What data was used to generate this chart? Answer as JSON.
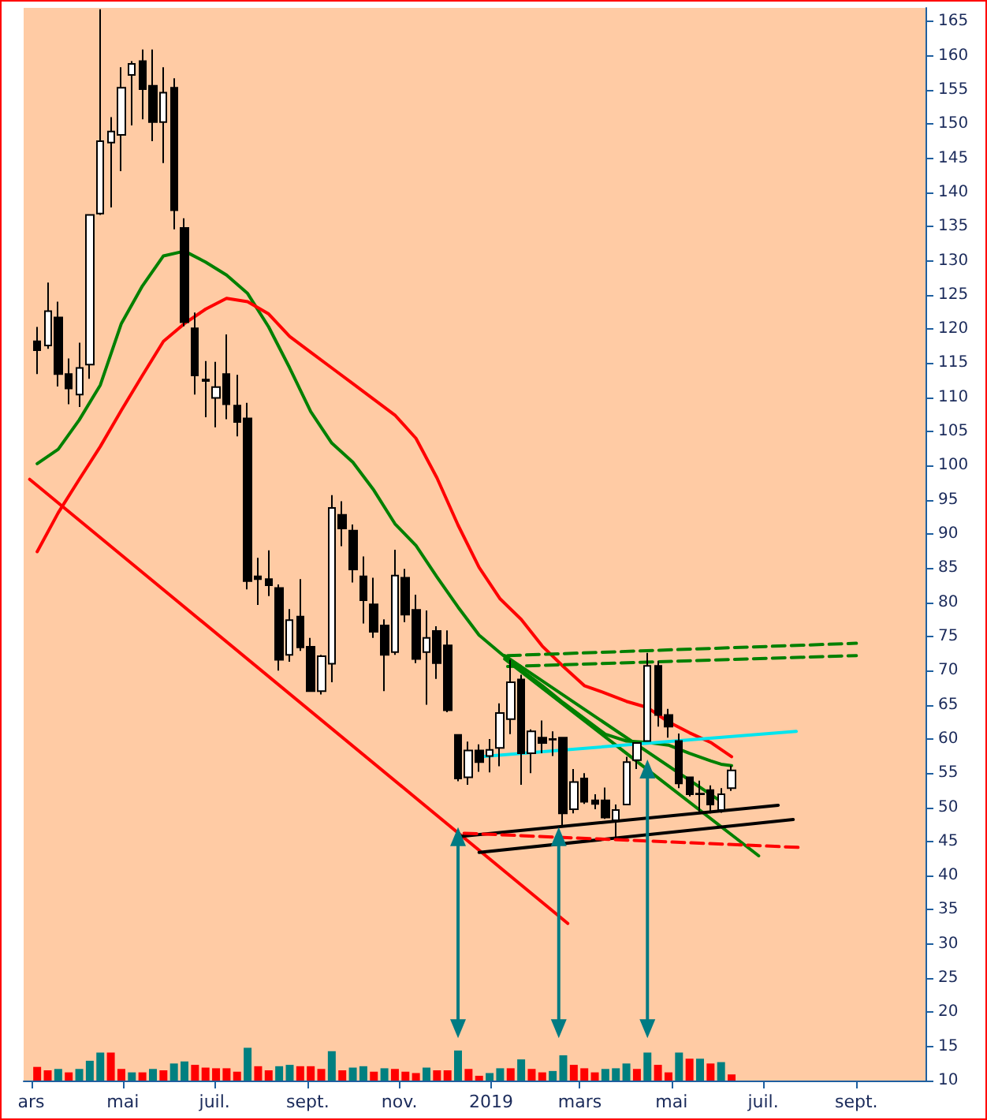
{
  "chart_data": {
    "type": "candlestick",
    "x": [
      "2018-03-05",
      "2018-03-12",
      "2018-03-19",
      "2018-03-26",
      "2018-04-02",
      "2018-04-09",
      "2018-04-16",
      "2018-04-23",
      "2018-04-30",
      "2018-05-07",
      "2018-05-14",
      "2018-05-21",
      "2018-05-28",
      "2018-06-04",
      "2018-06-11",
      "2018-06-18",
      "2018-06-25",
      "2018-07-02",
      "2018-07-09",
      "2018-07-16",
      "2018-07-23",
      "2018-07-30",
      "2018-08-06",
      "2018-08-13",
      "2018-08-20",
      "2018-08-27",
      "2018-09-03",
      "2018-09-10",
      "2018-09-17",
      "2018-09-24",
      "2018-10-01",
      "2018-10-08",
      "2018-10-15",
      "2018-10-22",
      "2018-10-29",
      "2018-11-05",
      "2018-11-12",
      "2018-11-19",
      "2018-11-26",
      "2018-12-03",
      "2018-12-10",
      "2018-12-17",
      "2018-12-24",
      "2018-12-31",
      "2019-01-07",
      "2019-01-14",
      "2019-01-21",
      "2019-01-28",
      "2019-02-04",
      "2019-02-11",
      "2019-02-18",
      "2019-02-25",
      "2019-03-04",
      "2019-03-11",
      "2019-03-18",
      "2019-03-25",
      "2019-04-01",
      "2019-04-08",
      "2019-04-15",
      "2019-04-22",
      "2019-04-29",
      "2019-05-06",
      "2019-05-13",
      "2019-05-20",
      "2019-05-27",
      "2019-06-03",
      "2019-06-10"
    ],
    "series": [
      {
        "type": "bar",
        "values": [
          12.0,
          11.5,
          11.7,
          11.2,
          11.7,
          12.9,
          14.1,
          14.1,
          11.7,
          11.2,
          11.2,
          11.7,
          11.5,
          12.5,
          12.8,
          12.3,
          11.9,
          11.8,
          11.8,
          11.3,
          14.8,
          12.1,
          11.5,
          12.1,
          12.3,
          12.1,
          12.1,
          11.7,
          14.3,
          11.5,
          11.9,
          12.1,
          11.3,
          11.8,
          11.7,
          11.3,
          11.1,
          11.9,
          11.5,
          11.5,
          14.4,
          11.7,
          10.7,
          11.1,
          11.8,
          11.8,
          13.1,
          11.7,
          11.2,
          11.4,
          13.7,
          12.3,
          11.8,
          11.2,
          11.7,
          11.8,
          12.5,
          11.7,
          14.1,
          12.3,
          11.2,
          14.1,
          13.2,
          13.2,
          12.5,
          12.7,
          10.9
        ],
        "colors": [
          "#ff0000",
          "#ff0000",
          "#008080",
          "#ff0000",
          "#008080",
          "#008080",
          "#008080",
          "#ff0000",
          "#ff0000",
          "#008080",
          "#ff0000",
          "#008080",
          "#ff0000",
          "#008080",
          "#008080",
          "#ff0000",
          "#ff0000",
          "#ff0000",
          "#ff0000",
          "#ff0000",
          "#008080",
          "#ff0000",
          "#ff0000",
          "#008080",
          "#008080",
          "#ff0000",
          "#ff0000",
          "#ff0000",
          "#008080",
          "#ff0000",
          "#008080",
          "#008080",
          "#ff0000",
          "#008080",
          "#ff0000",
          "#ff0000",
          "#ff0000",
          "#008080",
          "#ff0000",
          "#ff0000",
          "#008080",
          "#ff0000",
          "#ff0000",
          "#008080",
          "#008080",
          "#ff0000",
          "#008080",
          "#ff0000",
          "#ff0000",
          "#008080",
          "#008080",
          "#ff0000",
          "#ff0000",
          "#ff0000",
          "#008080",
          "#008080",
          "#008080",
          "#ff0000",
          "#008080",
          "#ff0000",
          "#ff0000",
          "#008080",
          "#ff0000",
          "#008080",
          "#ff0000",
          "#008080",
          "#ff0000"
        ]
      },
      {
        "type": "line",
        "color": "#008000",
        "x": [
          "2018-03-05",
          "2018-03-19",
          "2018-04-02",
          "2018-04-16",
          "2018-04-30",
          "2018-05-14",
          "2018-05-28",
          "2018-06-11",
          "2018-06-25",
          "2018-07-09",
          "2018-07-23",
          "2018-08-06",
          "2018-08-20",
          "2018-09-03",
          "2018-09-17",
          "2018-10-01",
          "2018-10-15",
          "2018-10-29",
          "2018-11-12",
          "2018-11-26",
          "2018-12-10",
          "2018-12-24",
          "2019-01-07",
          "2019-01-21",
          "2019-02-04",
          "2019-02-18",
          "2019-03-04",
          "2019-03-18",
          "2019-04-01",
          "2019-04-15",
          "2019-04-29",
          "2019-05-13",
          "2019-05-27",
          "2019-06-03",
          "2019-06-10"
        ],
        "values": [
          100.3,
          102.4,
          106.7,
          111.8,
          120.8,
          126.3,
          130.7,
          131.4,
          129.8,
          127.9,
          125.2,
          120.3,
          114.3,
          107.9,
          103.3,
          100.5,
          96.4,
          91.5,
          88.3,
          83.7,
          79.3,
          75.2,
          72.6,
          70.1,
          67.8,
          65.3,
          63.0,
          60.7,
          59.7,
          59.5,
          59.1,
          57.9,
          56.8,
          56.3,
          56.1
        ]
      },
      {
        "type": "line",
        "color": "#ff0000",
        "x": [
          "2018-03-05",
          "2018-03-19",
          "2018-04-02",
          "2018-04-16",
          "2018-04-30",
          "2018-05-14",
          "2018-05-28",
          "2018-06-11",
          "2018-06-25",
          "2018-07-09",
          "2018-07-23",
          "2018-08-06",
          "2018-08-20",
          "2018-09-03",
          "2018-09-17",
          "2018-10-01",
          "2018-10-15",
          "2018-10-29",
          "2018-11-12",
          "2018-11-26",
          "2018-12-10",
          "2018-12-24",
          "2019-01-07",
          "2019-01-21",
          "2019-02-04",
          "2019-02-18",
          "2019-03-04",
          "2019-03-18",
          "2019-04-01",
          "2019-04-15",
          "2019-04-29",
          "2019-05-13",
          "2019-05-27",
          "2019-06-10"
        ],
        "values": [
          87.4,
          93.1,
          98.0,
          102.8,
          108.1,
          113.2,
          118.2,
          120.8,
          122.9,
          124.5,
          124.0,
          122.2,
          118.9,
          116.6,
          114.3,
          112.0,
          109.7,
          107.4,
          104.0,
          98.2,
          91.3,
          85.1,
          80.5,
          77.5,
          73.6,
          70.6,
          67.8,
          66.7,
          65.5,
          64.6,
          62.5,
          60.9,
          59.5,
          57.4
        ]
      },
      {
        "type": "line",
        "color": "#ff0000",
        "x": [
          "2018-02-28",
          "2019-02-21"
        ],
        "values": [
          98.0,
          33.0
        ]
      },
      {
        "type": "line",
        "color": "#008000",
        "x": [
          "2019-01-10",
          "2019-06-28"
        ],
        "values": [
          71.7,
          42.9
        ]
      },
      {
        "type": "line",
        "color": "#008000",
        "x": [
          "2019-01-10",
          "2019-06-02"
        ],
        "values": [
          72.2,
          51.0
        ]
      },
      {
        "type": "line",
        "color": "#008000",
        "line_style": "dashed",
        "x": [
          "2019-01-12",
          "2019-09-01"
        ],
        "values": [
          72.2,
          74.0
        ]
      },
      {
        "type": "line",
        "color": "#008000",
        "line_style": "dashed",
        "x": [
          "2019-01-12",
          "2019-09-01"
        ],
        "values": [
          70.6,
          72.2
        ]
      },
      {
        "type": "line",
        "color": "#00e5ee",
        "x": [
          "2018-12-24",
          "2019-07-23"
        ],
        "values": [
          57.4,
          61.1
        ]
      },
      {
        "type": "line",
        "color": "#000000",
        "x": [
          "2018-12-10",
          "2019-07-11"
        ],
        "values": [
          45.7,
          50.3
        ]
      },
      {
        "type": "line",
        "color": "#000000",
        "x": [
          "2018-12-24",
          "2019-07-21"
        ],
        "values": [
          43.4,
          48.2
        ]
      },
      {
        "type": "line",
        "color": "#ff0000",
        "line_style": "dashed",
        "x": [
          "2018-12-14",
          "2019-07-28"
        ],
        "values": [
          46.2,
          44.1
        ]
      },
      {
        "type": "line",
        "color": "#007b83",
        "marker": "triangle",
        "x": [
          "2018-12-10",
          "2018-12-10"
        ],
        "values": [
          45.7,
          17.6
        ]
      },
      {
        "type": "line",
        "color": "#007b83",
        "marker": "triangle",
        "x": [
          "2019-02-15",
          "2019-02-15"
        ],
        "values": [
          45.7,
          17.6
        ]
      },
      {
        "type": "line",
        "color": "#007b83",
        "marker": "triangle",
        "x": [
          "2019-04-15",
          "2019-04-15"
        ],
        "values": [
          55.6,
          17.6
        ]
      },
      {
        "color": "#000000",
        "ohlc": [
          [
            118.2,
            120.3,
            113.4,
            116.9
          ],
          [
            117.6,
            126.8,
            117.1,
            122.6
          ],
          [
            121.7,
            124.0,
            111.6,
            113.4
          ],
          [
            113.4,
            115.7,
            109.0,
            111.3
          ],
          [
            110.4,
            118.0,
            108.6,
            114.3
          ],
          [
            114.8,
            136.7,
            112.7,
            136.7
          ],
          [
            136.9,
            166.8,
            136.7,
            147.5
          ],
          [
            147.3,
            151.0,
            137.8,
            148.9
          ],
          [
            148.4,
            158.3,
            143.1,
            155.3
          ],
          [
            157.2,
            159.2,
            149.8,
            158.8
          ],
          [
            159.2,
            160.9,
            150.7,
            155.1
          ],
          [
            155.6,
            160.9,
            147.5,
            150.3
          ],
          [
            150.3,
            158.3,
            144.3,
            154.6
          ],
          [
            155.3,
            156.7,
            134.6,
            137.4
          ],
          [
            134.8,
            136.2,
            120.4,
            121.0
          ],
          [
            120.1,
            122.4,
            110.4,
            113.2
          ],
          [
            112.6,
            115.3,
            107.1,
            112.4
          ],
          [
            109.9,
            115.2,
            105.6,
            111.5
          ],
          [
            113.4,
            119.2,
            106.8,
            109.0
          ],
          [
            108.8,
            113.3,
            104.3,
            106.4
          ],
          [
            106.9,
            109.2,
            81.9,
            83.1
          ],
          [
            83.8,
            86.5,
            79.6,
            83.4
          ],
          [
            83.4,
            87.6,
            80.9,
            82.5
          ],
          [
            82.1,
            82.6,
            70.0,
            71.6
          ],
          [
            72.3,
            79.0,
            71.3,
            77.4
          ],
          [
            77.9,
            83.4,
            72.9,
            73.4
          ],
          [
            73.5,
            74.8,
            67.0,
            67.0
          ],
          [
            67.0,
            72.3,
            66.5,
            72.1
          ],
          [
            71.0,
            95.7,
            68.3,
            93.8
          ],
          [
            92.8,
            94.8,
            88.2,
            90.8
          ],
          [
            90.5,
            91.4,
            82.9,
            84.8
          ],
          [
            83.8,
            86.7,
            76.9,
            80.3
          ],
          [
            79.7,
            83.6,
            74.8,
            75.7
          ],
          [
            76.6,
            77.5,
            67.0,
            72.3
          ],
          [
            72.7,
            87.7,
            72.3,
            83.9
          ],
          [
            83.6,
            84.9,
            77.1,
            78.2
          ],
          [
            78.9,
            81.1,
            71.1,
            71.7
          ],
          [
            72.7,
            78.8,
            65.0,
            74.8
          ],
          [
            75.8,
            76.5,
            68.8,
            71.1
          ],
          [
            73.7,
            75.9,
            63.9,
            64.2
          ],
          [
            60.6,
            60.6,
            53.8,
            54.2
          ],
          [
            54.4,
            59.6,
            53.3,
            58.3
          ],
          [
            58.3,
            59.2,
            55.2,
            56.6
          ],
          [
            57.5,
            60.0,
            55.1,
            58.4
          ],
          [
            58.7,
            65.2,
            56.0,
            63.8
          ],
          [
            62.9,
            71.6,
            60.7,
            68.3
          ],
          [
            68.7,
            69.4,
            53.3,
            57.9
          ],
          [
            57.9,
            61.4,
            55.0,
            61.1
          ],
          [
            60.2,
            62.7,
            57.9,
            59.4
          ],
          [
            60.0,
            61.1,
            57.5,
            59.9
          ],
          [
            60.2,
            60.2,
            47.2,
            49.1
          ],
          [
            49.7,
            55.6,
            49.1,
            53.7
          ],
          [
            54.2,
            55.0,
            50.5,
            50.8
          ],
          [
            51.0,
            51.9,
            49.7,
            50.5
          ],
          [
            51.0,
            52.9,
            48.3,
            48.5
          ],
          [
            48.1,
            50.4,
            45.5,
            49.6
          ],
          [
            50.4,
            57.4,
            50.4,
            56.6
          ],
          [
            56.9,
            59.4,
            55.6,
            59.4
          ],
          [
            59.7,
            72.6,
            59.7,
            70.7
          ],
          [
            70.7,
            71.4,
            61.8,
            63.5
          ],
          [
            63.5,
            64.4,
            60.2,
            61.8
          ],
          [
            59.7,
            60.8,
            52.8,
            53.5
          ],
          [
            54.4,
            54.4,
            51.6,
            51.9
          ],
          [
            52.0,
            53.9,
            49.3,
            51.9
          ],
          [
            52.5,
            53.2,
            49.1,
            50.4
          ],
          [
            49.6,
            52.8,
            49.2,
            51.9
          ],
          [
            52.8,
            56.1,
            52.4,
            55.4
          ]
        ]
      }
    ],
    "xlim": [
      "2018-02-24",
      "2019-10-17"
    ],
    "xticks": [
      {
        "value": "2018-03-01",
        "label": "ars"
      },
      {
        "value": "2018-05-01",
        "label": "mai"
      },
      {
        "value": "2018-07-01",
        "label": "juil."
      },
      {
        "value": "2018-09-01",
        "label": "sept."
      },
      {
        "value": "2018-11-01",
        "label": "nov."
      },
      {
        "value": "2019-01-01",
        "label": "2019"
      },
      {
        "value": "2019-03-01",
        "label": "mars"
      },
      {
        "value": "2019-05-01",
        "label": "mai"
      },
      {
        "value": "2019-07-01",
        "label": "juil."
      },
      {
        "value": "2019-09-01",
        "label": "sept."
      }
    ],
    "ylim": [
      10,
      167
    ],
    "yticks": [
      10,
      15,
      20,
      25,
      30,
      35,
      40,
      45,
      50,
      55,
      60,
      65,
      70,
      75,
      80,
      85,
      90,
      95,
      100,
      105,
      110,
      115,
      120,
      125,
      130,
      135,
      140,
      145,
      150,
      155,
      160,
      165
    ],
    "marker": "none",
    "line_style": "solid",
    "grid": false
  }
}
